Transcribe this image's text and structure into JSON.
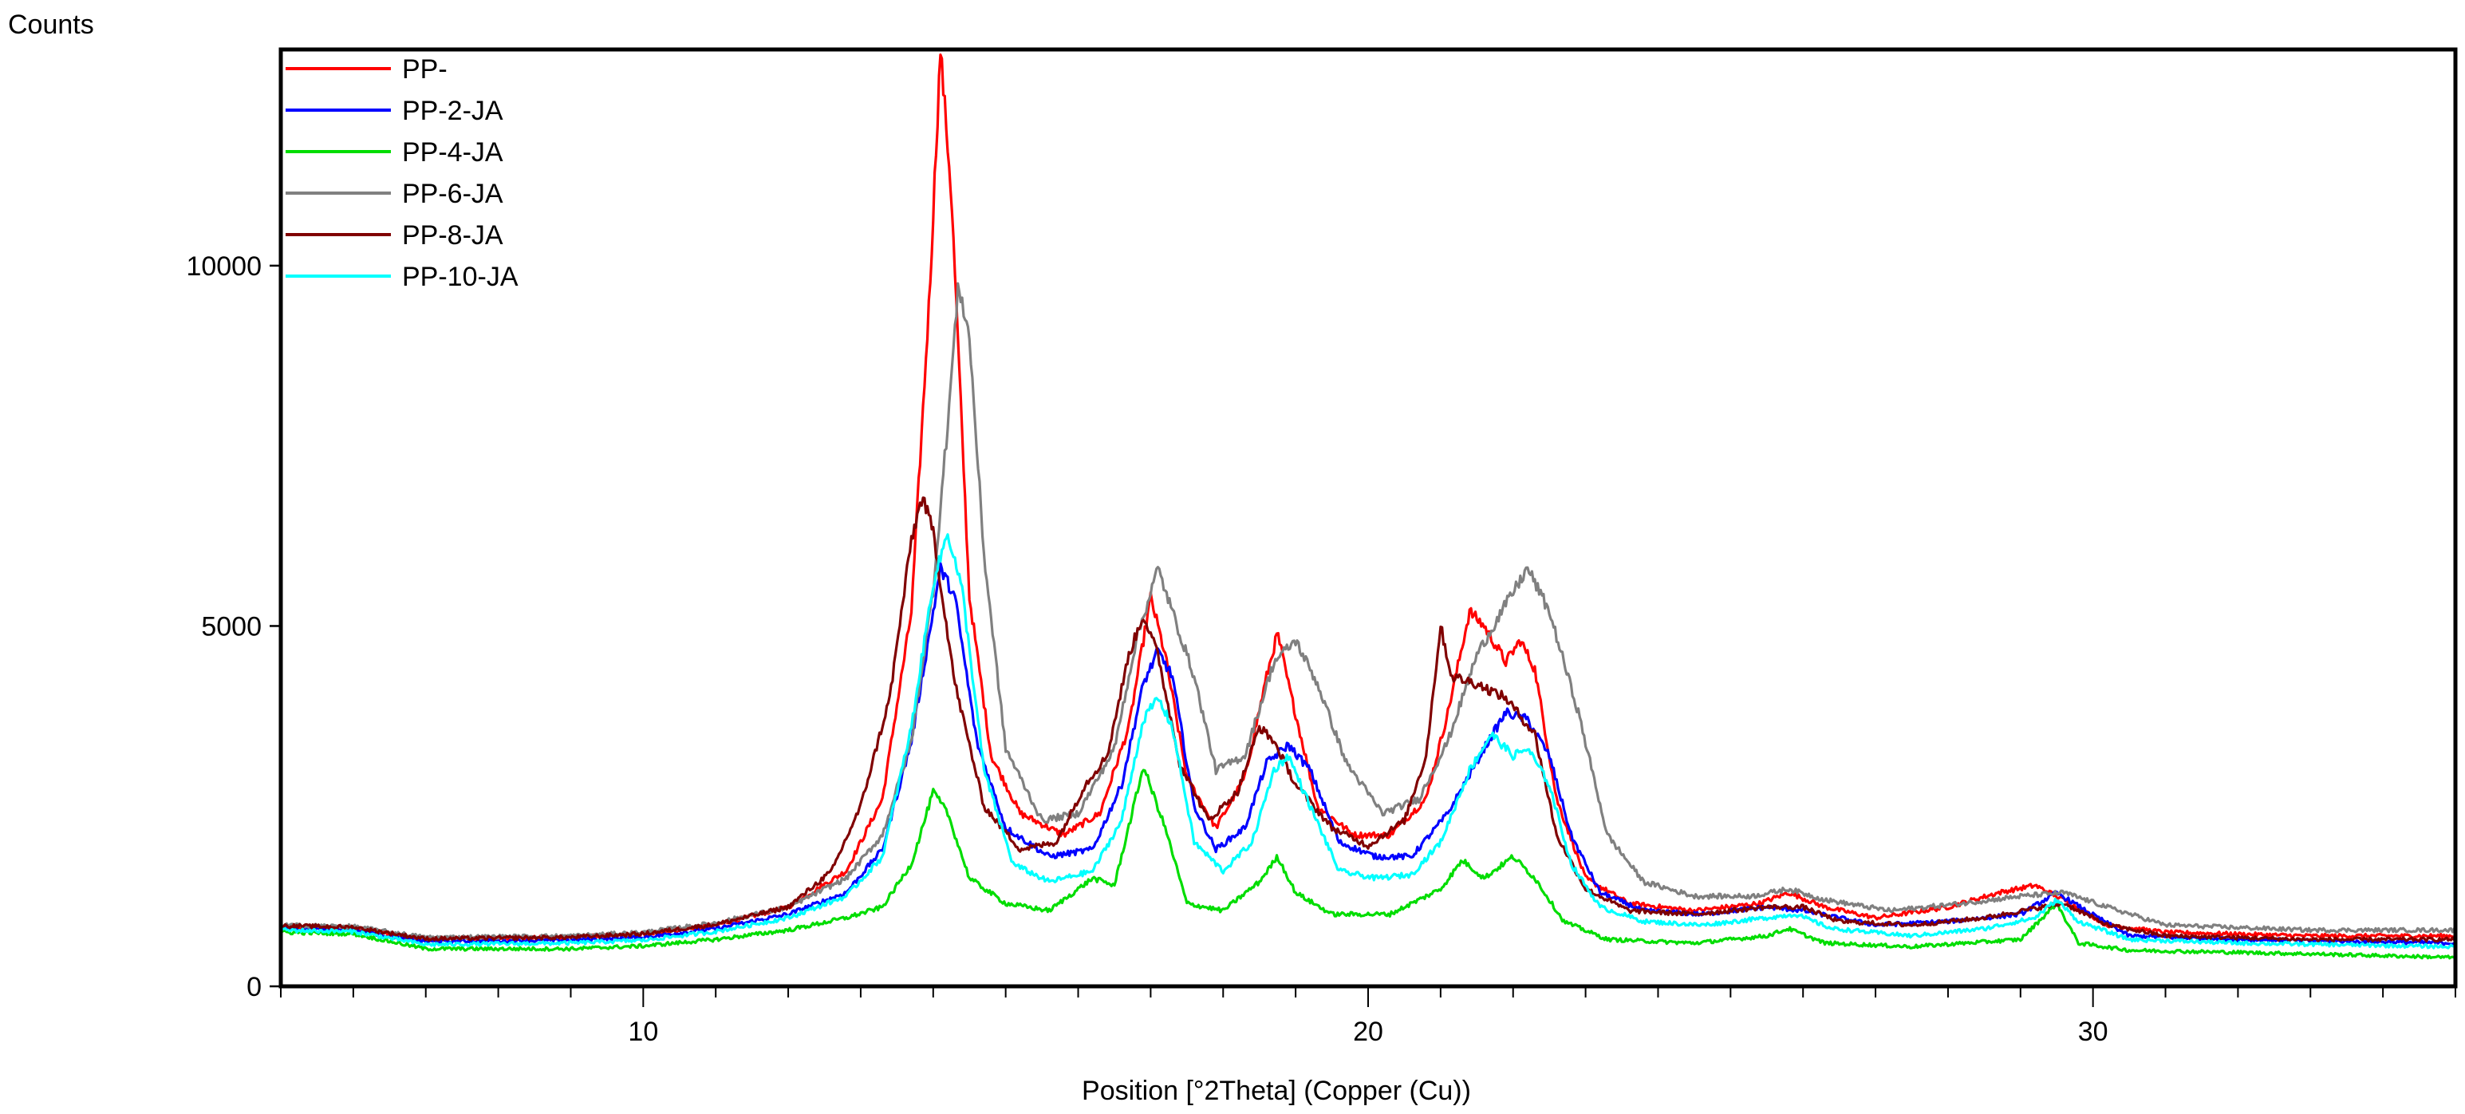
{
  "chart_data": {
    "type": "line",
    "title": "",
    "xlabel": "Position [°2Theta] (Copper (Cu))",
    "ylabel": "Counts",
    "xlim": [
      5,
      35
    ],
    "ylim": [
      0,
      13000
    ],
    "xticks": [
      10,
      20,
      30
    ],
    "xtick_labels": [
      "10",
      "20",
      "30"
    ],
    "yticks": [
      0,
      5000,
      10000
    ],
    "ytick_labels": [
      "0",
      "5000",
      "10000"
    ],
    "grid": false,
    "legend_position": "top-left",
    "series": [
      {
        "name": "PP-",
        "color": "#ff0000",
        "points": [
          [
            5,
            820
          ],
          [
            6,
            800
          ],
          [
            7,
            650
          ],
          [
            9,
            680
          ],
          [
            10,
            720
          ],
          [
            11,
            850
          ],
          [
            12,
            1100
          ],
          [
            12.8,
            1600
          ],
          [
            13.3,
            2600
          ],
          [
            13.7,
            5200
          ],
          [
            13.95,
            9600
          ],
          [
            14.1,
            13000
          ],
          [
            14.25,
            11000
          ],
          [
            14.5,
            5400
          ],
          [
            14.8,
            3200
          ],
          [
            15.2,
            2400
          ],
          [
            15.8,
            2100
          ],
          [
            16.3,
            2400
          ],
          [
            16.7,
            3600
          ],
          [
            17.0,
            5400
          ],
          [
            17.2,
            4600
          ],
          [
            17.5,
            2900
          ],
          [
            17.9,
            2200
          ],
          [
            18.3,
            2900
          ],
          [
            18.6,
            4300
          ],
          [
            18.75,
            4900
          ],
          [
            18.9,
            4200
          ],
          [
            19.3,
            2500
          ],
          [
            19.8,
            2100
          ],
          [
            20.3,
            2100
          ],
          [
            20.8,
            2600
          ],
          [
            21.1,
            3800
          ],
          [
            21.4,
            5200
          ],
          [
            21.6,
            5000
          ],
          [
            21.9,
            4500
          ],
          [
            22.1,
            4800
          ],
          [
            22.3,
            4400
          ],
          [
            22.6,
            2600
          ],
          [
            23.0,
            1500
          ],
          [
            23.6,
            1150
          ],
          [
            24.5,
            1050
          ],
          [
            25.4,
            1150
          ],
          [
            25.8,
            1300
          ],
          [
            26.3,
            1100
          ],
          [
            27,
            950
          ],
          [
            28,
            1100
          ],
          [
            28.7,
            1300
          ],
          [
            29.2,
            1400
          ],
          [
            29.6,
            1200
          ],
          [
            30.2,
            850
          ],
          [
            31,
            750
          ],
          [
            33,
            700
          ],
          [
            35,
            700
          ]
        ]
      },
      {
        "name": "PP-2-JA",
        "color": "#0000ff",
        "points": [
          [
            5,
            800
          ],
          [
            6,
            780
          ],
          [
            7,
            620
          ],
          [
            9,
            640
          ],
          [
            10,
            680
          ],
          [
            11,
            800
          ],
          [
            12,
            1000
          ],
          [
            12.8,
            1300
          ],
          [
            13.3,
            1900
          ],
          [
            13.7,
            3400
          ],
          [
            14.0,
            5200
          ],
          [
            14.1,
            5800
          ],
          [
            14.3,
            5400
          ],
          [
            14.6,
            3400
          ],
          [
            15.0,
            2200
          ],
          [
            15.6,
            1800
          ],
          [
            16.2,
            1900
          ],
          [
            16.6,
            2800
          ],
          [
            16.9,
            4200
          ],
          [
            17.1,
            4650
          ],
          [
            17.3,
            4300
          ],
          [
            17.6,
            2500
          ],
          [
            17.9,
            1900
          ],
          [
            18.3,
            2200
          ],
          [
            18.6,
            3100
          ],
          [
            18.9,
            3350
          ],
          [
            19.2,
            3000
          ],
          [
            19.6,
            2000
          ],
          [
            20.1,
            1800
          ],
          [
            20.6,
            1800
          ],
          [
            21.1,
            2400
          ],
          [
            21.6,
            3300
          ],
          [
            21.9,
            3800
          ],
          [
            22.2,
            3700
          ],
          [
            22.5,
            3200
          ],
          [
            22.8,
            2100
          ],
          [
            23.2,
            1300
          ],
          [
            23.8,
            1050
          ],
          [
            24.6,
            1000
          ],
          [
            25.5,
            1100
          ],
          [
            26.0,
            1050
          ],
          [
            27,
            850
          ],
          [
            28,
            900
          ],
          [
            29,
            1000
          ],
          [
            29.5,
            1300
          ],
          [
            29.9,
            1050
          ],
          [
            30.5,
            700
          ],
          [
            32,
            650
          ],
          [
            35,
            600
          ]
        ]
      },
      {
        "name": "PP-4-JA",
        "color": "#00dd00",
        "points": [
          [
            5,
            750
          ],
          [
            6,
            730
          ],
          [
            7,
            520
          ],
          [
            9,
            520
          ],
          [
            10,
            560
          ],
          [
            11,
            650
          ],
          [
            12,
            780
          ],
          [
            12.8,
            950
          ],
          [
            13.3,
            1100
          ],
          [
            13.7,
            1700
          ],
          [
            14.0,
            2700
          ],
          [
            14.2,
            2400
          ],
          [
            14.5,
            1500
          ],
          [
            15.0,
            1150
          ],
          [
            15.6,
            1050
          ],
          [
            16.2,
            1500
          ],
          [
            16.5,
            1400
          ],
          [
            16.9,
            3050
          ],
          [
            17.2,
            2200
          ],
          [
            17.5,
            1150
          ],
          [
            18.0,
            1050
          ],
          [
            18.5,
            1450
          ],
          [
            18.75,
            1800
          ],
          [
            19.0,
            1300
          ],
          [
            19.5,
            1000
          ],
          [
            20.3,
            1000
          ],
          [
            21.0,
            1350
          ],
          [
            21.3,
            1750
          ],
          [
            21.6,
            1500
          ],
          [
            22.0,
            1800
          ],
          [
            22.3,
            1500
          ],
          [
            22.7,
            900
          ],
          [
            23.3,
            650
          ],
          [
            24.5,
            600
          ],
          [
            25.5,
            700
          ],
          [
            25.8,
            800
          ],
          [
            26.3,
            600
          ],
          [
            27.5,
            550
          ],
          [
            29.0,
            650
          ],
          [
            29.5,
            1150
          ],
          [
            29.8,
            600
          ],
          [
            30.5,
            500
          ],
          [
            33,
            450
          ],
          [
            35,
            400
          ]
        ]
      },
      {
        "name": "PP-6-JA",
        "color": "#808080",
        "points": [
          [
            5,
            850
          ],
          [
            6,
            830
          ],
          [
            7,
            680
          ],
          [
            9,
            700
          ],
          [
            10,
            750
          ],
          [
            11,
            880
          ],
          [
            12,
            1100
          ],
          [
            12.8,
            1500
          ],
          [
            13.3,
            2100
          ],
          [
            13.7,
            3400
          ],
          [
            14.0,
            5500
          ],
          [
            14.2,
            7800
          ],
          [
            14.35,
            9750
          ],
          [
            14.5,
            9000
          ],
          [
            14.7,
            6000
          ],
          [
            15.0,
            3300
          ],
          [
            15.5,
            2300
          ],
          [
            16.0,
            2400
          ],
          [
            16.5,
            3300
          ],
          [
            16.8,
            4800
          ],
          [
            17.1,
            5800
          ],
          [
            17.3,
            5200
          ],
          [
            17.6,
            4300
          ],
          [
            17.9,
            3000
          ],
          [
            18.3,
            3200
          ],
          [
            18.7,
            4500
          ],
          [
            19.0,
            4800
          ],
          [
            19.3,
            4200
          ],
          [
            19.7,
            3100
          ],
          [
            20.2,
            2400
          ],
          [
            20.7,
            2600
          ],
          [
            21.1,
            3400
          ],
          [
            21.5,
            4600
          ],
          [
            21.9,
            5300
          ],
          [
            22.2,
            5800
          ],
          [
            22.5,
            5200
          ],
          [
            22.9,
            3800
          ],
          [
            23.3,
            2100
          ],
          [
            23.8,
            1450
          ],
          [
            24.5,
            1250
          ],
          [
            25.3,
            1250
          ],
          [
            25.8,
            1350
          ],
          [
            26.3,
            1200
          ],
          [
            27.2,
            1050
          ],
          [
            28.2,
            1150
          ],
          [
            29.0,
            1250
          ],
          [
            29.6,
            1300
          ],
          [
            30.2,
            1100
          ],
          [
            31,
            850
          ],
          [
            33,
            780
          ],
          [
            35,
            780
          ]
        ]
      },
      {
        "name": "PP-8-JA",
        "color": "#800000",
        "points": [
          [
            5,
            840
          ],
          [
            6,
            820
          ],
          [
            7,
            660
          ],
          [
            9,
            680
          ],
          [
            10,
            730
          ],
          [
            11,
            860
          ],
          [
            12,
            1100
          ],
          [
            12.6,
            1600
          ],
          [
            13.0,
            2500
          ],
          [
            13.4,
            4000
          ],
          [
            13.7,
            6200
          ],
          [
            13.85,
            6800
          ],
          [
            14.0,
            6300
          ],
          [
            14.3,
            4200
          ],
          [
            14.7,
            2500
          ],
          [
            15.2,
            1900
          ],
          [
            15.7,
            2000
          ],
          [
            16.1,
            2800
          ],
          [
            16.4,
            3200
          ],
          [
            16.7,
            4600
          ],
          [
            16.9,
            5150
          ],
          [
            17.1,
            4600
          ],
          [
            17.4,
            3100
          ],
          [
            17.8,
            2300
          ],
          [
            18.2,
            2700
          ],
          [
            18.5,
            3600
          ],
          [
            18.7,
            3400
          ],
          [
            19.0,
            2800
          ],
          [
            19.5,
            2200
          ],
          [
            20.0,
            1950
          ],
          [
            20.5,
            2300
          ],
          [
            20.8,
            3200
          ],
          [
            21.0,
            5000
          ],
          [
            21.15,
            4300
          ],
          [
            21.5,
            4200
          ],
          [
            21.9,
            4000
          ],
          [
            22.3,
            3500
          ],
          [
            22.6,
            2100
          ],
          [
            23.0,
            1350
          ],
          [
            23.6,
            1050
          ],
          [
            24.5,
            1000
          ],
          [
            25.5,
            1100
          ],
          [
            26.0,
            1100
          ],
          [
            26.5,
            900
          ],
          [
            27.5,
            850
          ],
          [
            28.5,
            950
          ],
          [
            29.3,
            1100
          ],
          [
            29.6,
            1150
          ],
          [
            30.2,
            850
          ],
          [
            31,
            700
          ],
          [
            33,
            650
          ],
          [
            35,
            650
          ]
        ]
      },
      {
        "name": "PP-10-JA",
        "color": "#00ffff",
        "points": [
          [
            5,
            780
          ],
          [
            6,
            760
          ],
          [
            7,
            580
          ],
          [
            9,
            600
          ],
          [
            10,
            640
          ],
          [
            11,
            760
          ],
          [
            12,
            950
          ],
          [
            12.8,
            1250
          ],
          [
            13.3,
            1800
          ],
          [
            13.7,
            3600
          ],
          [
            14.0,
            5600
          ],
          [
            14.2,
            6300
          ],
          [
            14.4,
            5500
          ],
          [
            14.7,
            3000
          ],
          [
            15.1,
            1700
          ],
          [
            15.6,
            1450
          ],
          [
            16.2,
            1600
          ],
          [
            16.6,
            2300
          ],
          [
            16.9,
            3700
          ],
          [
            17.1,
            4000
          ],
          [
            17.3,
            3600
          ],
          [
            17.6,
            2000
          ],
          [
            18.0,
            1600
          ],
          [
            18.4,
            2000
          ],
          [
            18.7,
            3000
          ],
          [
            18.9,
            3200
          ],
          [
            19.2,
            2500
          ],
          [
            19.6,
            1600
          ],
          [
            20.1,
            1500
          ],
          [
            20.6,
            1550
          ],
          [
            21.0,
            2000
          ],
          [
            21.4,
            3000
          ],
          [
            21.7,
            3500
          ],
          [
            22.0,
            3200
          ],
          [
            22.2,
            3300
          ],
          [
            22.5,
            2800
          ],
          [
            22.8,
            1700
          ],
          [
            23.2,
            1100
          ],
          [
            23.8,
            900
          ],
          [
            24.6,
            850
          ],
          [
            25.5,
            950
          ],
          [
            25.9,
            1000
          ],
          [
            26.4,
            800
          ],
          [
            27.5,
            700
          ],
          [
            28.5,
            800
          ],
          [
            29.2,
            950
          ],
          [
            29.5,
            1200
          ],
          [
            29.8,
            900
          ],
          [
            30.5,
            650
          ],
          [
            32,
            600
          ],
          [
            35,
            550
          ]
        ]
      }
    ]
  }
}
